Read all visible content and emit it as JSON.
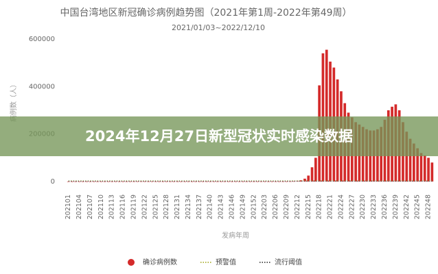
{
  "overlay_title": "2024年12月27日新型冠状实时感染数据",
  "chart_data": {
    "type": "bar",
    "title": "中国台湾地区新冠确诊病例趋势图（2021年第1周-2022年第49周）",
    "subtitle": "2021/01/03~2022/12/10",
    "y_label": "病例数（人）",
    "x_label": "发病年周",
    "categories": [
      "202101",
      null,
      null,
      "202104",
      null,
      null,
      "202107",
      null,
      null,
      "202110",
      null,
      null,
      "202113",
      null,
      null,
      "202116",
      null,
      null,
      "202119",
      null,
      null,
      "202122",
      null,
      null,
      "202125",
      null,
      null,
      "202128",
      null,
      null,
      "202131",
      null,
      null,
      "202134",
      null,
      null,
      "202137",
      null,
      null,
      "202140",
      null,
      null,
      "202143",
      null,
      null,
      "202146",
      null,
      null,
      "202149",
      null,
      null,
      "202152",
      null,
      null,
      "202203",
      null,
      null,
      "202206",
      null,
      null,
      "202209",
      null,
      null,
      "202212",
      null,
      null,
      "202215",
      null,
      null,
      "202218",
      null,
      null,
      "202221",
      null,
      null,
      "202224",
      null,
      null,
      "202227",
      null,
      null,
      "202230",
      null,
      null,
      "202233",
      null,
      null,
      "202236",
      null,
      null,
      "202239",
      null,
      null,
      "202242",
      null,
      null,
      "202245",
      null,
      null,
      "202248",
      null
    ],
    "series": [
      {
        "name": "确诊病例数",
        "color": "#d42a2a",
        "values": [
          100,
          100,
          100,
          100,
          100,
          100,
          100,
          100,
          100,
          100,
          100,
          100,
          100,
          100,
          100,
          100,
          100,
          100,
          200,
          300,
          400,
          300,
          200,
          200,
          150,
          150,
          100,
          100,
          100,
          100,
          100,
          100,
          100,
          100,
          100,
          100,
          100,
          100,
          100,
          100,
          100,
          100,
          100,
          100,
          100,
          100,
          100,
          100,
          100,
          100,
          100,
          100,
          150,
          200,
          150,
          100,
          120,
          150,
          200,
          250,
          300,
          500,
          1000,
          2000,
          5000,
          12000,
          25000,
          60000,
          100000,
          405000,
          540000,
          555000,
          505000,
          480000,
          430000,
          380000,
          330000,
          290000,
          270000,
          250000,
          240000,
          230000,
          220000,
          215000,
          215000,
          220000,
          230000,
          260000,
          300000,
          315000,
          325000,
          300000,
          250000,
          210000,
          180000,
          160000,
          140000,
          120000,
          110000,
          100000,
          80000
        ]
      },
      {
        "name": "预警值",
        "color": "#b5b84a",
        "line_style": "dotted",
        "values": [
          3000,
          3000,
          3000,
          3000,
          3000,
          3000,
          3000,
          3000,
          3000,
          3000,
          3000,
          3000,
          3000,
          3000,
          3000,
          3000,
          3000,
          3000,
          3000,
          3000,
          3000,
          3000,
          3000,
          3000,
          3000,
          3000,
          3000,
          3000,
          3000,
          3000,
          3000,
          3000,
          3000,
          3000,
          3000,
          3000,
          3000,
          3000,
          3000,
          3000,
          3000,
          3000,
          3000,
          3000,
          3000,
          3000,
          3000,
          3000,
          3000,
          3000,
          3000,
          3000,
          3000,
          3000,
          3000,
          3000,
          3000,
          3000,
          3000,
          3000,
          3000,
          3000,
          3000,
          3000,
          3000,
          3000,
          3000,
          3000,
          3000,
          3000,
          3000,
          3000,
          3000,
          3000,
          3000,
          3000,
          3000,
          3000,
          3000,
          3000,
          3000,
          3000,
          3000,
          3000,
          3000,
          3000,
          3000,
          3000,
          3000,
          3000,
          3000,
          3000,
          3000,
          3000,
          3000,
          3000,
          3000,
          3000,
          3000,
          3000,
          3000
        ]
      },
      {
        "name": "流行阈值",
        "color": "#555555",
        "line_style": "dotted",
        "values": [
          1500,
          1500,
          1500,
          1500,
          1500,
          1500,
          1500,
          1500,
          1500,
          1500,
          1500,
          1500,
          1500,
          1500,
          1500,
          1500,
          1500,
          1500,
          1500,
          1500,
          1500,
          1500,
          1500,
          1500,
          1500,
          1500,
          1500,
          1500,
          1500,
          1500,
          1500,
          1500,
          1500,
          1500,
          1500,
          1500,
          1500,
          1500,
          1500,
          1500,
          1500,
          1500,
          1500,
          1500,
          1500,
          1500,
          1500,
          1500,
          1500,
          1500,
          1500,
          1500,
          1500,
          1500,
          1500,
          1500,
          1500,
          1500,
          1500,
          1500,
          1500,
          1500,
          1500,
          1500,
          1500,
          1500,
          1500,
          1500,
          1500,
          1500,
          1500,
          1500,
          1500,
          1500,
          1500,
          1500,
          1500,
          1500,
          1500,
          1500,
          1500,
          1500,
          1500,
          1500,
          1500,
          1500,
          1500,
          1500,
          1500,
          1500,
          1500,
          1500,
          1500,
          1500,
          1500,
          1500,
          1500,
          1500,
          1500,
          1500,
          1500
        ]
      }
    ],
    "ylim": [
      0,
      600000
    ],
    "yticks": [
      0,
      200000,
      400000,
      600000
    ],
    "grid": false
  }
}
